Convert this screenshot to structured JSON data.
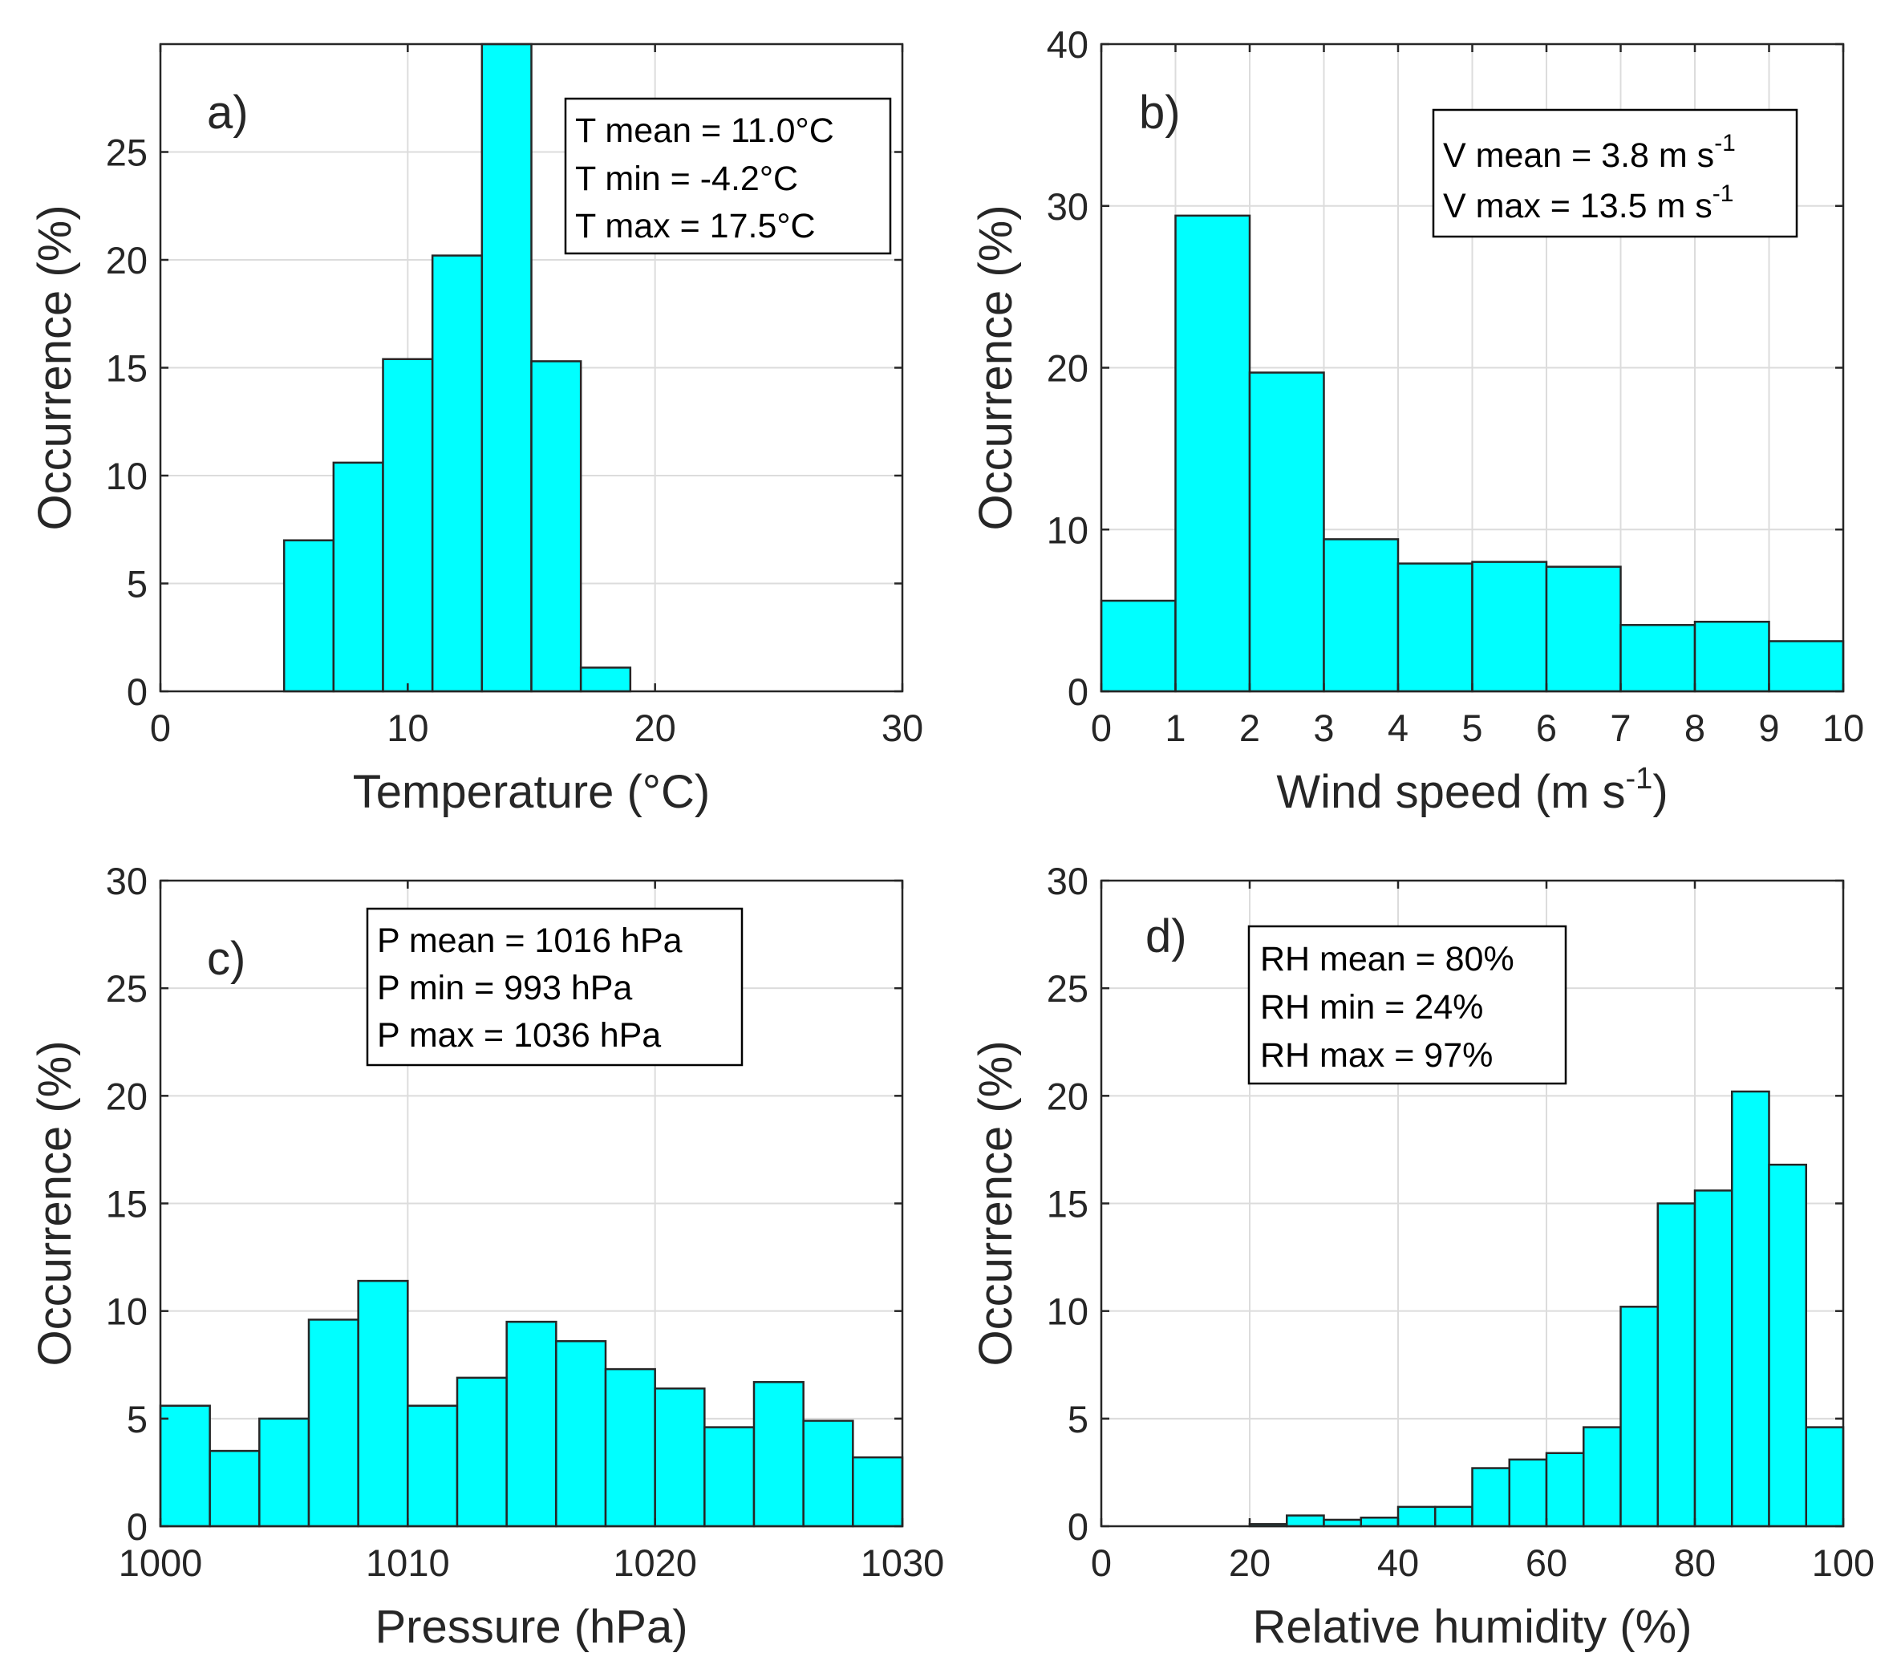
{
  "colors": {
    "bar_fill": "#00FFFF",
    "bar_stroke": "#262626",
    "grid": "#DCDCDC",
    "axis": "#262626",
    "text": "#262626"
  },
  "chart_data": [
    {
      "panel": "a)",
      "type": "bar",
      "xlabel": "Temperature (°C)",
      "ylabel": "Occurrence (%)",
      "xlim": [
        0,
        30
      ],
      "ylim": [
        0,
        30
      ],
      "xticks": [
        "0",
        "10",
        "20",
        "30"
      ],
      "yticks": [
        "0",
        "5",
        "10",
        "15",
        "20",
        "25"
      ],
      "bin_edges": [
        5,
        7,
        9,
        11,
        13,
        15,
        17,
        19
      ],
      "values": [
        7.0,
        10.6,
        15.4,
        20.2,
        30.0,
        15.3,
        1.1
      ],
      "stats": [
        "T mean = 11.0°C",
        "T min = -4.2°C",
        "T max = 17.5°C"
      ]
    },
    {
      "panel": "b)",
      "type": "bar",
      "xlabel": "Wind speed (m s",
      "xlabel_sup": "-1",
      "xlabel_end": ")",
      "ylabel": "Occurrence (%)",
      "xlim": [
        0,
        10
      ],
      "ylim": [
        0,
        40
      ],
      "xticks": [
        "0",
        "1",
        "2",
        "3",
        "4",
        "5",
        "6",
        "7",
        "8",
        "9",
        "10"
      ],
      "yticks": [
        "0",
        "10",
        "20",
        "30",
        "40"
      ],
      "bin_edges": [
        0,
        1,
        2,
        3,
        4,
        5,
        6,
        7,
        8,
        9,
        10
      ],
      "values": [
        5.6,
        29.4,
        19.7,
        9.4,
        7.9,
        8.0,
        7.7,
        4.1,
        4.3,
        3.1
      ],
      "stats": [
        {
          "text": "V mean = 3.8 m s",
          "sup": "-1"
        },
        {
          "text": "V max = 13.5 m s",
          "sup": "-1"
        }
      ]
    },
    {
      "panel": "c)",
      "type": "bar",
      "xlabel": "Pressure (hPa)",
      "ylabel": "Occurrence (%)",
      "xlim": [
        1000,
        1030
      ],
      "ylim": [
        0,
        30
      ],
      "xticks": [
        "1000",
        "1010",
        "1020",
        "1030"
      ],
      "yticks": [
        "0",
        "5",
        "10",
        "15",
        "20",
        "25",
        "30"
      ],
      "bin_edges": [
        1000,
        1002,
        1004,
        1006,
        1008,
        1010,
        1012,
        1014,
        1016,
        1018,
        1020,
        1022,
        1024,
        1026,
        1028,
        1030
      ],
      "values": [
        5.6,
        3.5,
        5.0,
        9.6,
        11.4,
        5.6,
        6.9,
        9.5,
        8.6,
        7.3,
        6.4,
        4.6,
        6.7,
        4.9,
        3.2
      ],
      "stats": [
        "P mean = 1016 hPa",
        "P min = 993 hPa",
        "P max = 1036 hPa"
      ]
    },
    {
      "panel": "d)",
      "type": "bar",
      "xlabel": "Relative humidity (%)",
      "ylabel": "Occurrence (%)",
      "xlim": [
        0,
        100
      ],
      "ylim": [
        0,
        30
      ],
      "xticks": [
        "0",
        "20",
        "40",
        "60",
        "80",
        "100"
      ],
      "yticks": [
        "0",
        "5",
        "10",
        "15",
        "20",
        "25",
        "30"
      ],
      "bin_edges": [
        20,
        25,
        30,
        35,
        40,
        45,
        50,
        55,
        60,
        65,
        70,
        75,
        80,
        85,
        90,
        95,
        100
      ],
      "values": [
        0.1,
        0.5,
        0.3,
        0.4,
        0.9,
        0.9,
        2.7,
        3.1,
        3.4,
        4.6,
        10.2,
        15.0,
        15.6,
        20.2,
        16.8,
        4.6
      ],
      "stats": [
        "RH mean = 80%",
        "RH min = 24%",
        "RH max = 97%"
      ]
    }
  ]
}
